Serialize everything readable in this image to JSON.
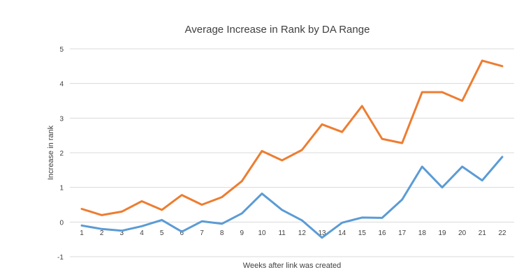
{
  "chart_data": {
    "type": "line",
    "title": "Average Increase in Rank by DA Range",
    "xlabel": "Weeks after link was created",
    "ylabel": "Increase in rank",
    "categories": [
      "1",
      "2",
      "3",
      "4",
      "5",
      "6",
      "7",
      "8",
      "9",
      "10",
      "11",
      "12",
      "13",
      "14",
      "15",
      "16",
      "17",
      "18",
      "19",
      "20",
      "21",
      "22"
    ],
    "ylim": [
      -1,
      5
    ],
    "yticks": [
      -1,
      0,
      1,
      2,
      3,
      4,
      5
    ],
    "grid": true,
    "legend": "none",
    "series": [
      {
        "color": "#ed7d31",
        "values": [
          0.38,
          0.2,
          0.3,
          0.6,
          0.35,
          0.78,
          0.5,
          0.72,
          1.18,
          2.05,
          1.78,
          2.08,
          2.82,
          2.6,
          3.35,
          2.4,
          2.28,
          3.75,
          3.75,
          3.5,
          4.66,
          4.5
        ]
      },
      {
        "color": "#5b9bd5",
        "values": [
          -0.1,
          -0.2,
          -0.25,
          -0.12,
          0.06,
          -0.28,
          0.02,
          -0.05,
          0.25,
          0.82,
          0.35,
          0.05,
          -0.45,
          -0.02,
          0.13,
          0.12,
          0.65,
          1.6,
          1.0,
          1.6,
          1.2,
          1.88
        ]
      }
    ]
  }
}
